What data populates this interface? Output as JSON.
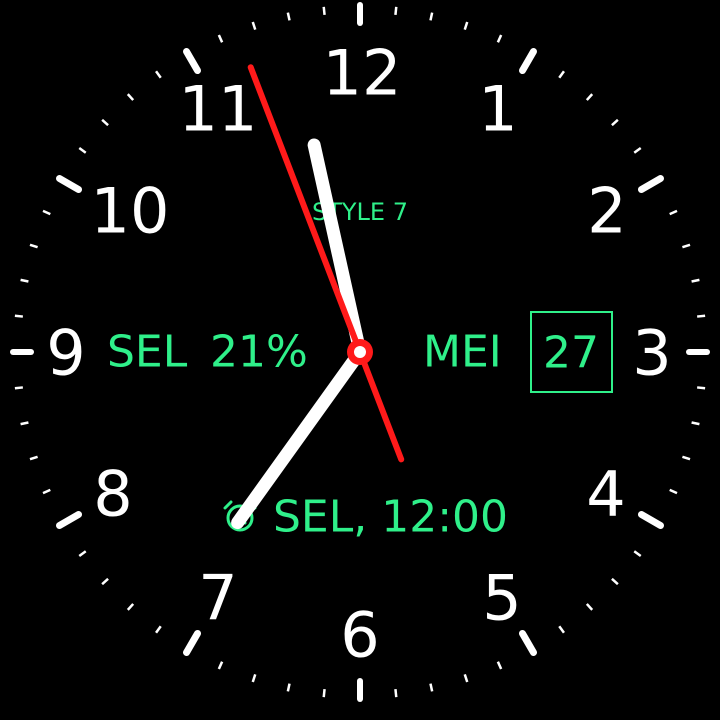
{
  "watch_face": {
    "style_label": "STYLE 7",
    "numerals": [
      "12",
      "1",
      "2",
      "3",
      "4",
      "5",
      "6",
      "7",
      "8",
      "9",
      "10",
      "11"
    ],
    "battery": {
      "day": "SEL",
      "percent": "21%"
    },
    "date": {
      "month": "MEI",
      "day": "27"
    },
    "alarm": {
      "icon": "alarm-clock-icon",
      "text": "SEL, 12:00"
    },
    "time": {
      "hours": 11,
      "minutes": 35,
      "seconds": 56.5
    },
    "colors": {
      "background": "#000000",
      "accent": "#2ff08a",
      "second_hand": "#ff1a1a",
      "hands": "#ffffff",
      "ticks": "#ffffff"
    }
  }
}
